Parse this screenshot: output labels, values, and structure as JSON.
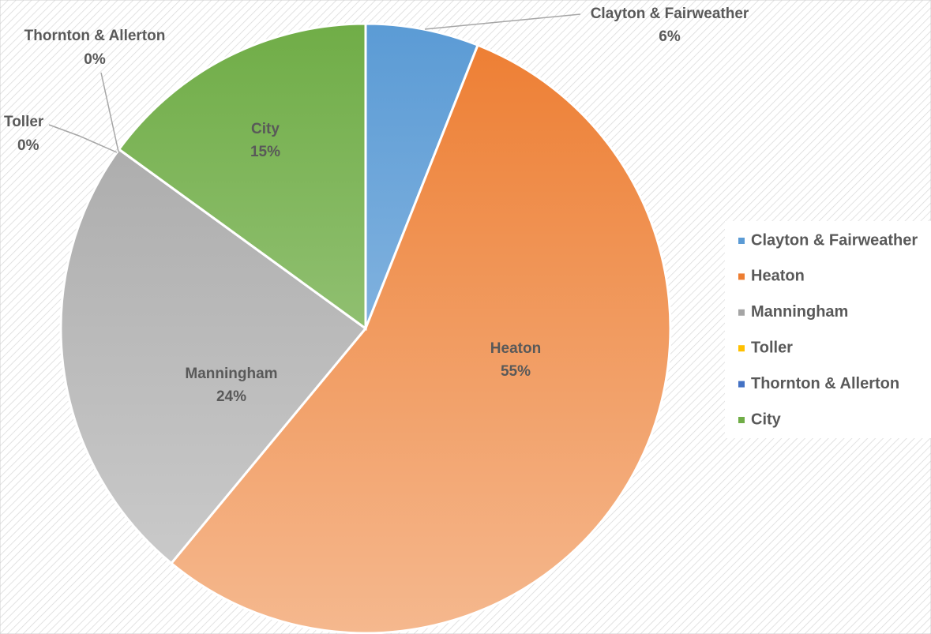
{
  "chart_data": {
    "type": "pie",
    "categories": [
      "Clayton & Fairweather",
      "Heaton",
      "Manningham",
      "Toller",
      "Thornton & Allerton",
      "City"
    ],
    "values": [
      6,
      55,
      24,
      0,
      0,
      15
    ],
    "value_labels": [
      "6%",
      "55%",
      "24%",
      "0%",
      "0%",
      "15%"
    ],
    "colors": [
      "#5b9bd5",
      "#ed7d31",
      "#a5a5a5",
      "#ffc000",
      "#4472c4",
      "#70ad47"
    ],
    "legend": "right"
  }
}
